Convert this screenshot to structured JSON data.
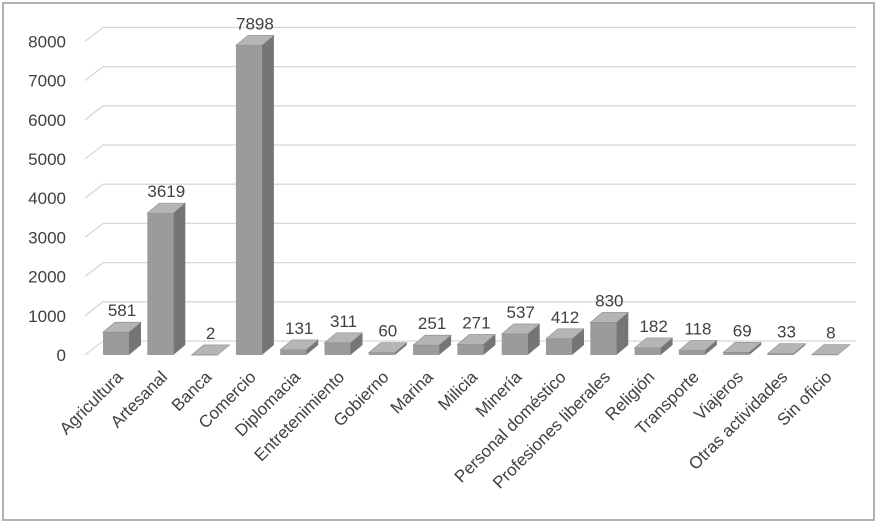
{
  "chart_data": {
    "type": "bar",
    "style": "3d-column",
    "title": "",
    "xlabel": "",
    "ylabel": "",
    "legend": false,
    "grid": true,
    "data_labels": true,
    "ylim": [
      0,
      8000
    ],
    "y_ticks": [
      0,
      1000,
      2000,
      3000,
      4000,
      5000,
      6000,
      7000,
      8000
    ],
    "categories": [
      "Agricultura",
      "Artesanal",
      "Banca",
      "Comercio",
      "Diplomacia",
      "Entretenimiento",
      "Gobierno",
      "Marina",
      "Milicia",
      "Minería",
      "Personal doméstico",
      "Profesiones liberales",
      "Religión",
      "Transporte",
      "Viajeros",
      "Otras actividades",
      "Sin oficio"
    ],
    "values": [
      581,
      3619,
      2,
      7898,
      131,
      311,
      60,
      251,
      271,
      537,
      412,
      830,
      182,
      118,
      69,
      33,
      8
    ],
    "x_tick_rotation_deg": 45,
    "colors": {
      "bar_front": "#9b9b9b",
      "bar_top": "#b5b5b5",
      "bar_side": "#757575",
      "bar_edge": "#8b8b8b",
      "gridline": "#d8d8d8",
      "text": "#404040",
      "background": "#ffffff",
      "frame_border": "#b2b2b2"
    }
  }
}
